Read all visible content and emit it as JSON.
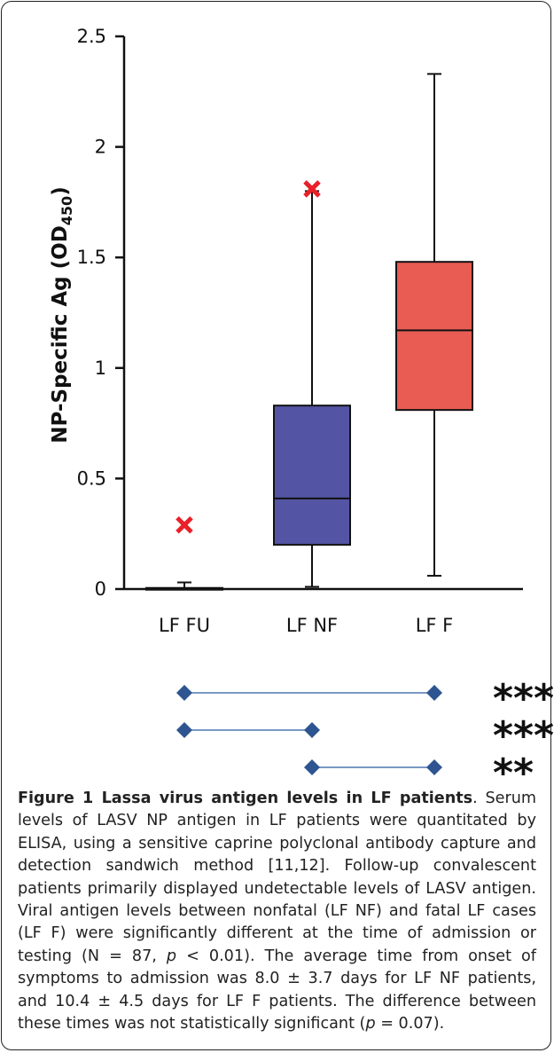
{
  "chart_data": {
    "type": "box",
    "ylabel": "NP-Specific Ag (OD",
    "ylabel_sub": "450",
    "ylabel_suffix": ")",
    "ylim": [
      0,
      2.5
    ],
    "yticks": [
      0,
      0.5,
      1,
      1.5,
      2,
      2.5
    ],
    "ytick_labels": [
      "0",
      "0.5",
      "1",
      "1.5",
      "2",
      "2.5"
    ],
    "grid": false,
    "categories": [
      "LF FU",
      "LF NF",
      "LF F"
    ],
    "boxes": [
      {
        "category": "LF FU",
        "min": 0,
        "q1": 0,
        "median": 0,
        "q3": 0.005,
        "max": 0.03,
        "outlier": 0.29,
        "color": "#222222"
      },
      {
        "category": "LF NF",
        "min": 0.01,
        "q1": 0.2,
        "median": 0.41,
        "q3": 0.83,
        "max": 1.8,
        "outlier": 1.81,
        "color": "#5454A4"
      },
      {
        "category": "LF F",
        "min": 0.06,
        "q1": 0.81,
        "median": 1.17,
        "q3": 1.48,
        "max": 2.33,
        "color": "#E85C54"
      }
    ],
    "outlier_color": "#E8202A",
    "significance": [
      {
        "from": "LF FU",
        "to": "LF F",
        "label": "***"
      },
      {
        "from": "LF FU",
        "to": "LF NF",
        "label": "***"
      },
      {
        "from": "LF NF",
        "to": "LF F",
        "label": "**"
      }
    ],
    "marker_color": "#2E5591",
    "line_color": "#4F77B0"
  },
  "caption": {
    "title": "Figure 1 Lassa virus antigen levels in LF patients",
    "text_1": ". Serum levels of LASV NP antigen in LF patients were quantitated by ELISA, using a sensitive caprine polyclonal antibody capture and detection sandwich method [11,12]. Follow-up convalescent patients primarily displayed undetectable levels of LASV antigen. Viral antigen levels between nonfatal (LF NF) and fatal LF cases (LF F) were significantly different at the time of admission or testing (N = 87, ",
    "p1": "p",
    "text_2": " < 0.01). The average time from onset of symptoms to admission was 8.0 ± 3.7 days for LF NF patients, and 10.4 ± 4.5 days for LF F patients. The difference between these times was not statistically significant (",
    "p2": "p",
    "text_3": " = 0.07)."
  }
}
